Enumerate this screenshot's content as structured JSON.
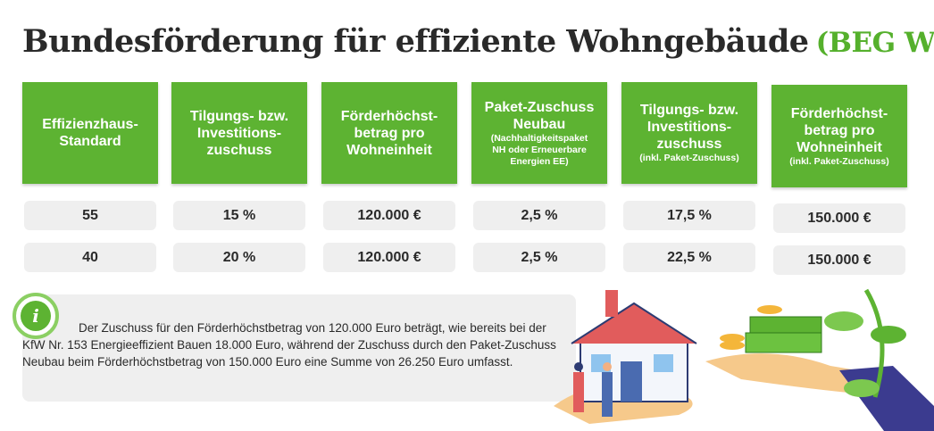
{
  "header": {
    "title": "Bundesförderung für effiziente Wohngebäude",
    "abbreviation": "(BEG WG)"
  },
  "table": {
    "columns": [
      {
        "lines": [
          "Effizienzhaus-",
          "Standard"
        ],
        "note": []
      },
      {
        "lines": [
          "Tilgungs- bzw.",
          "Investitions-",
          "zuschuss"
        ],
        "note": []
      },
      {
        "lines": [
          "Förderhöchst-",
          "betrag pro",
          "Wohneinheit"
        ],
        "note": []
      },
      {
        "lines": [
          "Paket-Zuschuss",
          "Neubau"
        ],
        "note": [
          "(Nachhaltigkeitspaket",
          "NH oder Erneuerbare",
          "Energien EE)"
        ]
      },
      {
        "lines": [
          "Tilgungs- bzw.",
          "Investitions-",
          "zuschuss"
        ],
        "note": [
          "(inkl. Paket-Zuschuss)"
        ]
      },
      {
        "lines": [
          "Förderhöchst-",
          "betrag pro",
          "Wohneinheit"
        ],
        "note": [
          "(inkl. Paket-Zuschuss)"
        ]
      }
    ],
    "rows": [
      [
        "55",
        "15 %",
        "120.000 €",
        "2,5 %",
        "17,5 %",
        "150.000 €"
      ],
      [
        "40",
        "20 %",
        "120.000 €",
        "2,5 %",
        "22,5 %",
        "150.000 €"
      ]
    ]
  },
  "info": {
    "icon": "i",
    "text": "Der Zuschuss für den Förderhöchstbetrag von 120.000 Euro beträgt, wie bereits bei der KfW Nr. 153 Energieeffizient Bauen 18.000 Euro, während der Zuschuss durch den Paket-Zuschuss Neubau beim Förderhöchstbetrag von 150.000 Euro eine Summe von 26.250 Euro umfasst."
  }
}
